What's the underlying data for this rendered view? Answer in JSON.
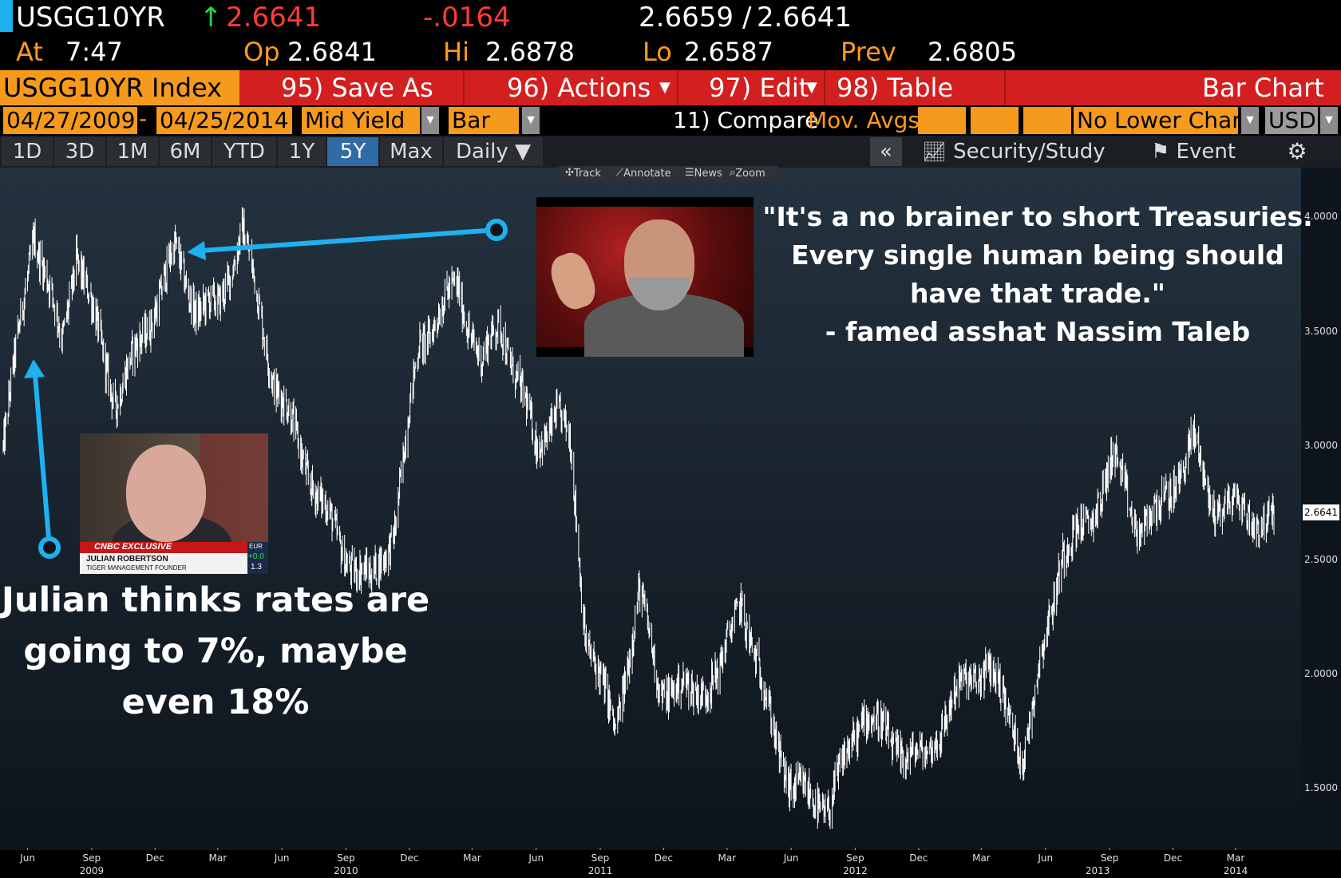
{
  "quote_header": {
    "ticker": "USGG10YR",
    "last": "2.6641",
    "change": "-.0164",
    "bid_ask_bid": "2.6659",
    "bid_ask_ask": "2.6641",
    "at_label": "At",
    "time": "7:47",
    "op_label": "Op",
    "op": "2.6841",
    "hi_label": "Hi",
    "hi": "2.6878",
    "lo_label": "Lo",
    "lo": "2.6587",
    "prev_label": "Prev",
    "prev": "2.6805"
  },
  "menu": {
    "index_label": "USGG10YR Index",
    "save_as": "95) Save As",
    "actions": "96) Actions",
    "edit": "97) Edit",
    "table": "98) Table",
    "view_name": "Bar Chart"
  },
  "settings": {
    "start_date": "04/27/2009",
    "dash": "-",
    "end_date": "04/25/2014",
    "field": "Mid Yield",
    "chart_type": "Bar",
    "compare": "11) Compare",
    "mov_avgs": "Mov. Avgs",
    "lower_chart": "No Lower Chart",
    "currency": "USD"
  },
  "range_tabs": [
    "1D",
    "3D",
    "1M",
    "6M",
    "YTD",
    "1Y",
    "5Y",
    "Max",
    "Daily ▼"
  ],
  "active_tab": "5Y",
  "right_controls": {
    "collapse": "«",
    "security_study": "Security/Study",
    "event": "Event",
    "settings_icon": "gear-icon"
  },
  "chart_toolbar": [
    "Track",
    "Annotate",
    "News",
    "Zoom"
  ],
  "annotations": {
    "taleb_quote": [
      "\"It's a no brainer to short Treasuries.",
      "Every single human being should",
      "have that trade.\"",
      "- famed asshat Nassim Taleb"
    ],
    "julian_text": [
      "Julian thinks rates are",
      "going to 7%, maybe",
      "even 18%"
    ],
    "cnbc_banner": "CNBC EXCLUSIVE",
    "cnbc_name": "JULIAN ROBERTSON",
    "cnbc_title": "TIGER MANAGEMENT FOUNDER",
    "cnbc_ticker_top": "EUR",
    "cnbc_ticker_mid": "+0.0",
    "cnbc_ticker_bot": "1.3"
  },
  "colors": {
    "accent_orange": "#f59a1c",
    "menu_red": "#d31f1f",
    "arrow_blue": "#1fb0f0",
    "bars": "#ffffff"
  },
  "chart_data": {
    "type": "bar",
    "ylim": [
      1.25,
      4.2
    ],
    "yticks": [
      "4.0000",
      "3.5000",
      "3.0000",
      "2.5000",
      "2.0000",
      "1.5000"
    ],
    "last_value": "2.6641",
    "x_month_ticks": [
      "Jun",
      "Sep",
      "Dec",
      "Mar",
      "Jun",
      "Sep",
      "Dec",
      "Mar",
      "Jun",
      "Sep",
      "Dec",
      "Mar",
      "Jun",
      "Sep",
      "Dec",
      "Mar",
      "Jun",
      "Sep",
      "Dec",
      "Mar"
    ],
    "x_year_ticks": [
      "2009",
      "2010",
      "2011",
      "2012",
      "2013",
      "2014"
    ],
    "series_anchors": [
      [
        "2009-04-27",
        3.0
      ],
      [
        "2009-06-10",
        3.95
      ],
      [
        "2009-07-20",
        3.45
      ],
      [
        "2009-08-10",
        3.85
      ],
      [
        "2009-10-05",
        3.2
      ],
      [
        "2009-11-10",
        3.45
      ],
      [
        "2009-12-30",
        3.85
      ],
      [
        "2010-01-30",
        3.6
      ],
      [
        "2010-03-01",
        3.6
      ],
      [
        "2010-04-05",
        3.95
      ],
      [
        "2010-05-20",
        3.3
      ],
      [
        "2010-07-01",
        2.95
      ],
      [
        "2010-08-25",
        2.55
      ],
      [
        "2010-10-07",
        2.4
      ],
      [
        "2010-11-10",
        2.65
      ],
      [
        "2010-12-15",
        3.45
      ],
      [
        "2011-02-08",
        3.7
      ],
      [
        "2011-03-15",
        3.35
      ],
      [
        "2011-04-10",
        3.55
      ],
      [
        "2011-06-01",
        3.0
      ],
      [
        "2011-06-30",
        3.15
      ],
      [
        "2011-07-20",
        3.0
      ],
      [
        "2011-08-10",
        2.2
      ],
      [
        "2011-09-22",
        1.75
      ],
      [
        "2011-10-27",
        2.35
      ],
      [
        "2011-11-25",
        1.95
      ],
      [
        "2012-01-10",
        1.92
      ],
      [
        "2012-02-20",
        2.0
      ],
      [
        "2012-03-20",
        2.35
      ],
      [
        "2012-04-15",
        2.0
      ],
      [
        "2012-06-01",
        1.5
      ],
      [
        "2012-07-25",
        1.42
      ],
      [
        "2012-09-14",
        1.85
      ],
      [
        "2012-10-20",
        1.7
      ],
      [
        "2012-12-10",
        1.62
      ],
      [
        "2013-01-20",
        1.9
      ],
      [
        "2013-03-10",
        2.05
      ],
      [
        "2013-05-01",
        1.65
      ],
      [
        "2013-06-25",
        2.55
      ],
      [
        "2013-08-01",
        2.65
      ],
      [
        "2013-09-06",
        2.95
      ],
      [
        "2013-10-10",
        2.65
      ],
      [
        "2013-11-10",
        2.7
      ],
      [
        "2013-12-31",
        3.02
      ],
      [
        "2014-01-25",
        2.75
      ],
      [
        "2014-02-15",
        2.75
      ],
      [
        "2014-03-20",
        2.7
      ],
      [
        "2014-04-25",
        2.66
      ]
    ]
  }
}
